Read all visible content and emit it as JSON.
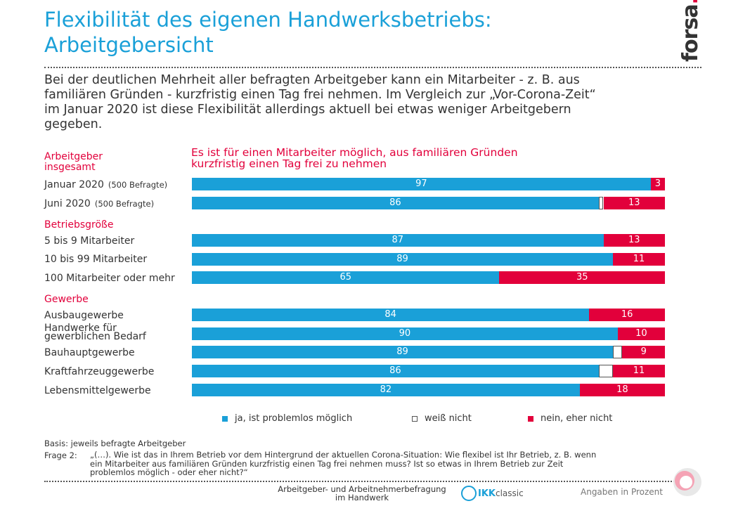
{
  "header": {
    "title_line1": "Flexibilität des eigenen Handwerksbetriebs:",
    "title_line2": "Arbeitgebersicht",
    "logo_text": "forsa",
    "logo_dot": "."
  },
  "lead": [
    "Bei der deutlichen Mehrheit aller befragten Arbeitgeber kann ein Mitarbeiter - z. B. aus",
    "familiären Gründen - kurzfristig einen Tag frei nehmen. Im Vergleich zur „Vor-Corona-Zeit“",
    "im Januar 2020 ist diese Flexibilität allerdings aktuell bei etwas weniger Arbeitgebern",
    "gegeben."
  ],
  "colors": {
    "ja": "#1aa0d8",
    "weiss_nicht": "#ffffff",
    "nein": "#e2003b",
    "accent": "#e2003b",
    "title": "#1aa0d8"
  },
  "chart_data": {
    "type": "bar",
    "orientation": "horizontal-stacked",
    "title_line1": "Es ist für einen Mitarbeiter möglich, aus familiären Gründen",
    "title_line2": "kurzfristig einen Tag frei zu nehmen",
    "series_names": [
      "ja, ist problemlos möglich",
      "weiß nicht",
      "nein, eher nicht"
    ],
    "groups": [
      {
        "heading_line1": "Arbeitgeber",
        "heading_line2": "insgesamt"
      },
      {
        "heading_line1": "Betriebsgröße",
        "heading_line2": ""
      },
      {
        "heading_line1": "Gewerbe",
        "heading_line2": ""
      }
    ],
    "rows": [
      {
        "label": "Januar 2020",
        "note": "(500 Befragte)",
        "ja": 97,
        "weiss_nicht": 0,
        "nein": 3
      },
      {
        "label": "Juni 2020",
        "note": "(500 Befragte)",
        "ja": 86,
        "weiss_nicht": 1,
        "nein": 13
      },
      {
        "label": "5 bis 9 Mitarbeiter",
        "note": "",
        "ja": 87,
        "weiss_nicht": 0,
        "nein": 13
      },
      {
        "label": "10 bis 99 Mitarbeiter",
        "note": "",
        "ja": 89,
        "weiss_nicht": 0,
        "nein": 11
      },
      {
        "label": "100 Mitarbeiter oder mehr",
        "note": "",
        "ja": 65,
        "weiss_nicht": 0,
        "nein": 35
      },
      {
        "label": "Ausbaugewerbe",
        "note": "",
        "ja": 84,
        "weiss_nicht": 0,
        "nein": 16
      },
      {
        "label_line1": "Handwerke für",
        "label_line2": "gewerblichen Bedarf",
        "ja": 90,
        "weiss_nicht": 0,
        "nein": 10
      },
      {
        "label": "Bauhauptgewerbe",
        "note": "",
        "ja": 89,
        "weiss_nicht": 2,
        "nein": 9
      },
      {
        "label": "Kraftfahrzeuggewerbe",
        "note": "",
        "ja": 86,
        "weiss_nicht": 3,
        "nein": 11
      },
      {
        "label": "Lebensmittelgewerbe",
        "note": "",
        "ja": 82,
        "weiss_nicht": 0,
        "nein": 18
      }
    ],
    "legend_position": "bottom"
  },
  "footer": {
    "basis": "Basis: jeweils befragte Arbeitgeber",
    "frage_label": "Frage 2:",
    "frage_line1": "„(…). Wie ist das in Ihrem Betrieb vor dem Hintergrund der aktuellen Corona-Situation: Wie flexibel ist Ihr Betrieb, z. B. wenn",
    "frage_line2": "ein Mitarbeiter aus familiären Gründen kurzfristig einen Tag frei nehmen muss? Ist so etwas in Ihrem Betrieb zur Zeit",
    "frage_line3": "problemlos möglich - oder eher nicht?“",
    "center_line1": "Arbeitgeber- und Arbeitnehmerbefragung",
    "center_line2": "im Handwerk",
    "ikk_brand": "IKK",
    "ikk_suffix": "classic",
    "unit_note": "Angaben in Prozent"
  }
}
